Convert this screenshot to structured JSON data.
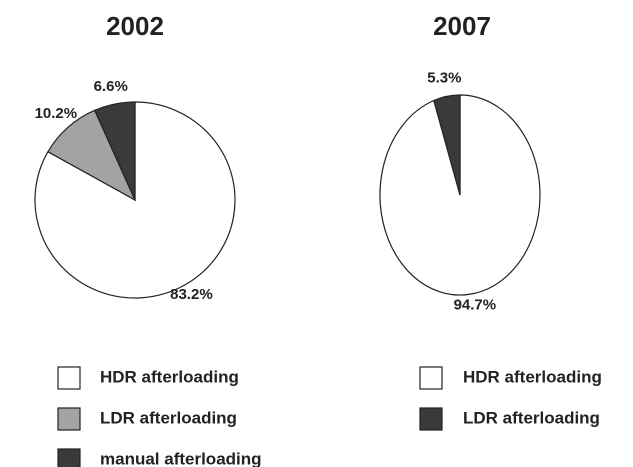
{
  "chart_data": [
    {
      "type": "pie",
      "title": "2002",
      "categories": [
        "HDR afterloading",
        "LDR afterloading",
        "manual afterloading"
      ],
      "values": [
        83.2,
        10.2,
        6.6
      ],
      "value_labels": [
        "83.2%",
        "10.2%",
        "6.6%"
      ],
      "colors": [
        "#ffffff",
        "#a3a3a3",
        "#3a3a3a"
      ]
    },
    {
      "type": "pie",
      "title": "2007",
      "categories": [
        "HDR afterloading",
        "LDR afterloading"
      ],
      "values": [
        94.7,
        5.3
      ],
      "value_labels": [
        "94.7%",
        "5.3%"
      ],
      "colors": [
        "#ffffff",
        "#3a3a3a"
      ]
    }
  ]
}
